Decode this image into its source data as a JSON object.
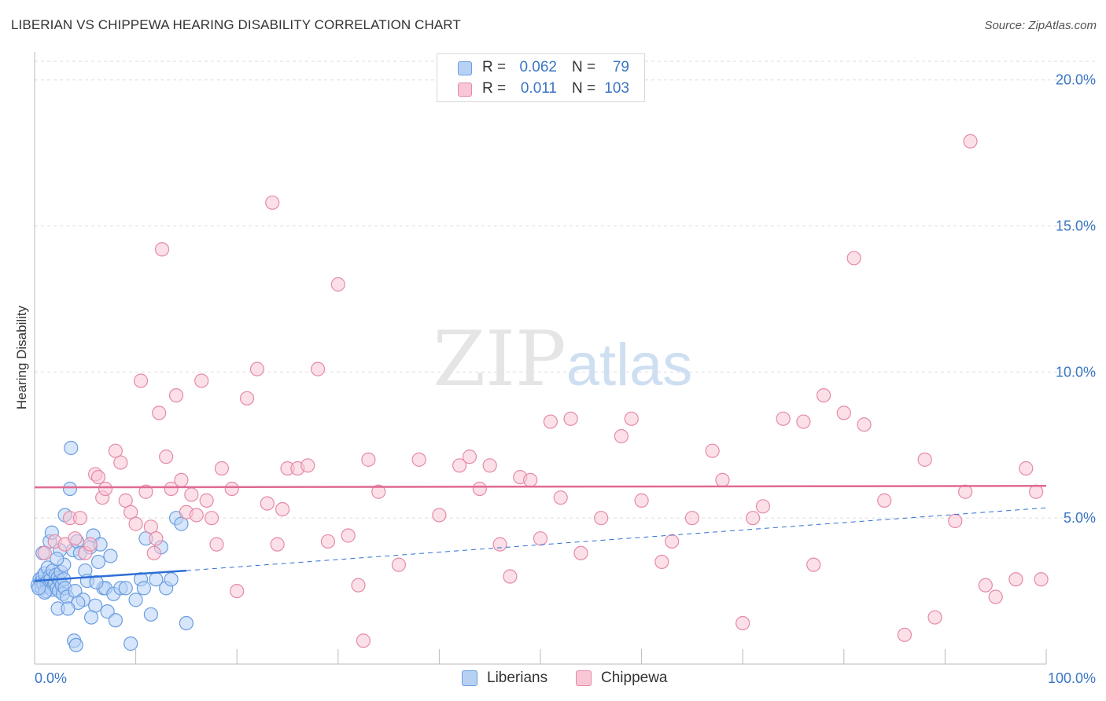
{
  "title": "LIBERIAN VS CHIPPEWA HEARING DISABILITY CORRELATION CHART",
  "source": "Source: ZipAtlas.com",
  "watermark": {
    "zip": "ZIP",
    "atlas": "atlas"
  },
  "legend": {
    "rows": [
      {
        "r_label": "R =",
        "r_value": "0.062",
        "n_label": "N =",
        "n_value": "79",
        "fill": "#b7d1f5",
        "stroke": "#6a9de0"
      },
      {
        "r_label": "R =",
        "r_value": "0.011",
        "n_label": "N =",
        "n_value": "103",
        "fill": "#f9c6d6",
        "stroke": "#e48aa8"
      }
    ]
  },
  "bottom_legend": [
    {
      "label": "Liberians",
      "fill": "#b7d1f5",
      "stroke": "#6a9de0"
    },
    {
      "label": "Chippewa",
      "fill": "#f9c6d6",
      "stroke": "#e48aa8"
    }
  ],
  "chart_data": {
    "type": "scatter",
    "title": "LIBERIAN VS CHIPPEWA HEARING DISABILITY CORRELATION CHART",
    "xlabel": "",
    "ylabel": "Hearing Disability",
    "xlim": [
      0,
      100
    ],
    "ylim": [
      0,
      20.8
    ],
    "x_tick_labels": [
      {
        "value": 0,
        "label": "0.0%"
      },
      {
        "value": 100,
        "label": "100.0%"
      }
    ],
    "y_tick_labels": [
      {
        "value": 5,
        "label": "5.0%"
      },
      {
        "value": 10,
        "label": "10.0%"
      },
      {
        "value": 15,
        "label": "15.0%"
      },
      {
        "value": 20,
        "label": "20.0%"
      }
    ],
    "x_minor_ticks": [
      10,
      20,
      30,
      40,
      50,
      60,
      70,
      80,
      90,
      100
    ],
    "grid": {
      "horizontal": true,
      "style": "dashed"
    },
    "series": [
      {
        "name": "Liberians",
        "color": "#6a9de0",
        "fill": "#b7d1f5",
        "trend": {
          "x_start": 0,
          "y_start": 2.85,
          "x_solid_end": 15,
          "y_solid_end": 3.2,
          "x_end": 100,
          "y_end": 5.35,
          "color": "#2f6fd6"
        },
        "points": [
          [
            0.3,
            2.7
          ],
          [
            0.5,
            2.9
          ],
          [
            0.6,
            2.8
          ],
          [
            0.7,
            2.6
          ],
          [
            0.8,
            3.0
          ],
          [
            0.9,
            2.75
          ],
          [
            1.0,
            3.1
          ],
          [
            1.1,
            2.5
          ],
          [
            1.2,
            2.8
          ],
          [
            1.3,
            3.3
          ],
          [
            1.4,
            2.65
          ],
          [
            1.5,
            3.0
          ],
          [
            1.6,
            2.9
          ],
          [
            1.7,
            2.55
          ],
          [
            1.8,
            3.2
          ],
          [
            1.9,
            2.7
          ],
          [
            2.0,
            2.8
          ],
          [
            2.1,
            3.05
          ],
          [
            2.2,
            2.6
          ],
          [
            2.3,
            2.95
          ],
          [
            2.4,
            2.5
          ],
          [
            2.5,
            2.85
          ],
          [
            2.6,
            3.15
          ],
          [
            2.7,
            2.7
          ],
          [
            2.8,
            2.4
          ],
          [
            2.9,
            2.9
          ],
          [
            3.0,
            2.6
          ],
          [
            0.8,
            3.8
          ],
          [
            1.5,
            4.2
          ],
          [
            1.7,
            4.5
          ],
          [
            2.5,
            3.9
          ],
          [
            3.0,
            5.1
          ],
          [
            3.2,
            2.3
          ],
          [
            3.5,
            6.0
          ],
          [
            3.6,
            7.4
          ],
          [
            3.8,
            3.9
          ],
          [
            4.0,
            2.5
          ],
          [
            4.2,
            4.2
          ],
          [
            4.5,
            3.8
          ],
          [
            4.8,
            2.2
          ],
          [
            5.0,
            3.2
          ],
          [
            5.2,
            2.85
          ],
          [
            5.5,
            4.0
          ],
          [
            5.8,
            4.4
          ],
          [
            6.0,
            2.0
          ],
          [
            6.3,
            3.5
          ],
          [
            6.5,
            4.1
          ],
          [
            6.8,
            2.6
          ],
          [
            7.0,
            2.6
          ],
          [
            7.2,
            1.8
          ],
          [
            7.5,
            3.7
          ],
          [
            7.8,
            2.4
          ],
          [
            8.0,
            1.5
          ],
          [
            8.5,
            2.6
          ],
          [
            9.0,
            2.6
          ],
          [
            9.5,
            0.7
          ],
          [
            10.0,
            2.2
          ],
          [
            10.5,
            2.9
          ],
          [
            10.8,
            2.6
          ],
          [
            11.0,
            4.3
          ],
          [
            11.5,
            1.7
          ],
          [
            12.0,
            2.9
          ],
          [
            12.5,
            4.0
          ],
          [
            13.0,
            2.6
          ],
          [
            13.5,
            2.9
          ],
          [
            14.0,
            5.0
          ],
          [
            14.5,
            4.8
          ],
          [
            15.0,
            1.4
          ],
          [
            3.9,
            0.8
          ],
          [
            4.1,
            0.65
          ],
          [
            2.3,
            1.9
          ],
          [
            4.3,
            2.1
          ],
          [
            2.9,
            3.4
          ],
          [
            2.2,
            3.6
          ],
          [
            1.0,
            2.45
          ],
          [
            0.4,
            2.6
          ],
          [
            3.3,
            1.9
          ],
          [
            5.6,
            1.6
          ],
          [
            6.1,
            2.8
          ]
        ]
      },
      {
        "name": "Chippewa",
        "color": "#e48aa8",
        "fill": "#f9c6d6",
        "trend": {
          "x_start": 0,
          "y_start": 6.05,
          "x_end": 100,
          "y_end": 6.1,
          "color": "#e06a94"
        },
        "points": [
          [
            1.0,
            3.8
          ],
          [
            2.0,
            4.2
          ],
          [
            3.0,
            4.1
          ],
          [
            3.5,
            5.0
          ],
          [
            4.0,
            4.3
          ],
          [
            4.5,
            5.0
          ],
          [
            5.0,
            3.8
          ],
          [
            5.5,
            4.1
          ],
          [
            6.0,
            6.5
          ],
          [
            6.3,
            6.4
          ],
          [
            6.7,
            5.7
          ],
          [
            7.0,
            6.0
          ],
          [
            8.0,
            7.3
          ],
          [
            9.0,
            5.6
          ],
          [
            9.5,
            5.2
          ],
          [
            10.0,
            4.8
          ],
          [
            10.5,
            9.7
          ],
          [
            11.0,
            5.9
          ],
          [
            11.5,
            4.7
          ],
          [
            12.0,
            4.3
          ],
          [
            12.3,
            8.6
          ],
          [
            12.6,
            14.2
          ],
          [
            13.0,
            7.1
          ],
          [
            13.5,
            6.0
          ],
          [
            14.0,
            9.2
          ],
          [
            14.5,
            6.3
          ],
          [
            15.0,
            5.2
          ],
          [
            15.5,
            5.8
          ],
          [
            16.0,
            5.1
          ],
          [
            16.5,
            9.7
          ],
          [
            17.0,
            5.6
          ],
          [
            17.5,
            5.0
          ],
          [
            18.0,
            4.1
          ],
          [
            18.5,
            6.7
          ],
          [
            19.5,
            6.0
          ],
          [
            20.0,
            2.5
          ],
          [
            21.0,
            9.1
          ],
          [
            22.0,
            10.1
          ],
          [
            23.0,
            5.5
          ],
          [
            23.5,
            15.8
          ],
          [
            24.0,
            4.1
          ],
          [
            24.5,
            5.3
          ],
          [
            25.0,
            6.7
          ],
          [
            26.0,
            6.7
          ],
          [
            27.0,
            6.8
          ],
          [
            28.0,
            10.1
          ],
          [
            29.0,
            4.2
          ],
          [
            30.0,
            13.0
          ],
          [
            31.0,
            4.4
          ],
          [
            32.0,
            2.7
          ],
          [
            32.5,
            0.8
          ],
          [
            33.0,
            7.0
          ],
          [
            34.0,
            5.9
          ],
          [
            36.0,
            3.4
          ],
          [
            38.0,
            7.0
          ],
          [
            40.0,
            5.1
          ],
          [
            42.0,
            6.8
          ],
          [
            43.0,
            7.1
          ],
          [
            44.0,
            6.0
          ],
          [
            45.0,
            6.8
          ],
          [
            46.0,
            4.1
          ],
          [
            47.0,
            3.0
          ],
          [
            48.0,
            6.4
          ],
          [
            49.0,
            6.3
          ],
          [
            50.0,
            4.3
          ],
          [
            51.0,
            8.3
          ],
          [
            52.0,
            5.7
          ],
          [
            53.0,
            8.4
          ],
          [
            54.0,
            3.8
          ],
          [
            56.0,
            5.0
          ],
          [
            58.0,
            7.8
          ],
          [
            59.0,
            8.4
          ],
          [
            60.0,
            5.6
          ],
          [
            62.0,
            3.5
          ],
          [
            63.0,
            4.2
          ],
          [
            65.0,
            5.0
          ],
          [
            67.0,
            7.3
          ],
          [
            68.0,
            6.3
          ],
          [
            70.0,
            1.4
          ],
          [
            71.0,
            5.0
          ],
          [
            72.0,
            5.4
          ],
          [
            74.0,
            8.4
          ],
          [
            76.0,
            8.3
          ],
          [
            77.0,
            3.4
          ],
          [
            78.0,
            9.2
          ],
          [
            80.0,
            8.6
          ],
          [
            81.0,
            13.9
          ],
          [
            82.0,
            8.2
          ],
          [
            84.0,
            5.6
          ],
          [
            86.0,
            1.0
          ],
          [
            88.0,
            7.0
          ],
          [
            89.0,
            1.6
          ],
          [
            91.0,
            4.9
          ],
          [
            92.0,
            5.9
          ],
          [
            94.0,
            2.7
          ],
          [
            95.0,
            2.3
          ],
          [
            92.5,
            17.9
          ],
          [
            97.0,
            2.9
          ],
          [
            98.0,
            6.7
          ],
          [
            99.0,
            5.9
          ],
          [
            99.5,
            2.9
          ],
          [
            11.8,
            3.8
          ],
          [
            8.5,
            6.9
          ]
        ]
      }
    ]
  }
}
